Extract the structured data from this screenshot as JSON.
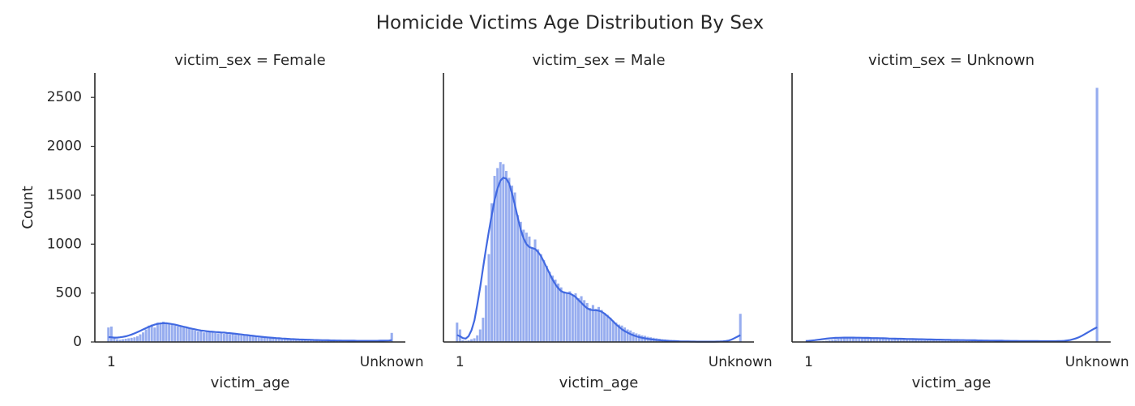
{
  "title": "Homicide Victims Age Distribution By Sex",
  "chart_data": [
    {
      "type": "bar",
      "title": "victim_sex = Female",
      "xlabel": "victim_age",
      "ylabel": "Count",
      "color": "#4169e1",
      "ylim": [
        0,
        2750
      ],
      "yticks": [
        0,
        500,
        1000,
        1500,
        2000,
        2500
      ],
      "categories": [
        null,
        "1",
        null,
        null,
        null,
        null,
        null,
        null,
        null,
        null,
        null,
        null,
        null,
        null,
        null,
        null,
        null,
        null,
        null,
        null,
        null,
        null,
        null,
        null,
        null,
        null,
        null,
        null,
        null,
        null,
        null,
        null,
        null,
        null,
        null,
        null,
        null,
        null,
        null,
        null,
        null,
        null,
        null,
        null,
        null,
        null,
        null,
        null,
        null,
        null,
        null,
        null,
        null,
        null,
        null,
        null,
        null,
        null,
        null,
        null,
        null,
        null,
        null,
        null,
        null,
        null,
        null,
        null,
        null,
        null,
        null,
        null,
        null,
        null,
        null,
        null,
        null,
        null,
        null,
        null,
        null,
        null,
        null,
        null,
        null,
        null,
        null,
        null,
        null,
        null,
        null,
        null,
        null,
        null,
        null,
        null,
        null,
        null,
        "Unknown"
      ],
      "values": [
        150,
        160,
        40,
        30,
        25,
        30,
        35,
        40,
        45,
        50,
        60,
        80,
        100,
        130,
        170,
        180,
        150,
        200,
        190,
        210,
        200,
        190,
        180,
        170,
        160,
        165,
        150,
        145,
        140,
        130,
        120,
        110,
        115,
        100,
        105,
        110,
        100,
        95,
        90,
        100,
        85,
        90,
        80,
        85,
        75,
        80,
        70,
        75,
        65,
        60,
        60,
        55,
        50,
        50,
        45,
        45,
        40,
        40,
        35,
        35,
        30,
        30,
        28,
        26,
        25,
        24,
        22,
        20,
        20,
        18,
        18,
        16,
        15,
        15,
        14,
        13,
        12,
        12,
        11,
        10,
        10,
        9,
        8,
        8,
        7,
        6,
        6,
        5,
        5,
        4,
        4,
        3,
        3,
        2,
        2,
        2,
        1,
        1,
        95
      ],
      "kde": [
        50,
        48,
        45,
        45,
        48,
        52,
        58,
        66,
        76,
        88,
        100,
        114,
        128,
        142,
        155,
        167,
        177,
        185,
        190,
        192,
        191,
        188,
        183,
        177,
        170,
        163,
        156,
        149,
        142,
        135,
        129,
        123,
        118,
        114,
        110,
        107,
        104,
        102,
        100,
        98,
        96,
        93,
        90,
        87,
        84,
        80,
        77,
        73,
        70,
        66,
        63,
        59,
        56,
        53,
        50,
        47,
        45,
        42,
        40,
        38,
        36,
        34,
        32,
        30,
        29,
        27,
        26,
        25,
        24,
        23,
        22,
        21,
        20,
        19,
        18,
        18,
        17,
        16,
        16,
        15,
        15,
        14,
        14,
        13,
        13,
        13,
        12,
        12,
        12,
        12,
        12,
        12,
        12,
        12,
        13,
        13,
        14,
        15,
        18
      ]
    },
    {
      "type": "bar",
      "title": "victim_sex = Male",
      "xlabel": "victim_age",
      "color": "#4169e1",
      "ylim": [
        0,
        2750
      ],
      "categories": [
        null,
        "1",
        null,
        null,
        null,
        null,
        null,
        null,
        null,
        null,
        null,
        null,
        null,
        null,
        null,
        null,
        null,
        null,
        null,
        null,
        null,
        null,
        null,
        null,
        null,
        null,
        null,
        null,
        null,
        null,
        null,
        null,
        null,
        null,
        null,
        null,
        null,
        null,
        null,
        null,
        null,
        null,
        null,
        null,
        null,
        null,
        null,
        null,
        null,
        null,
        null,
        null,
        null,
        null,
        null,
        null,
        null,
        null,
        null,
        null,
        null,
        null,
        null,
        null,
        null,
        null,
        null,
        null,
        null,
        null,
        null,
        null,
        null,
        null,
        null,
        null,
        null,
        null,
        null,
        null,
        null,
        null,
        null,
        null,
        null,
        null,
        null,
        null,
        null,
        null,
        null,
        null,
        null,
        null,
        null,
        null,
        null,
        null,
        "Unknown"
      ],
      "values": [
        200,
        130,
        20,
        15,
        20,
        30,
        40,
        70,
        130,
        250,
        580,
        900,
        1420,
        1700,
        1780,
        1840,
        1820,
        1750,
        1680,
        1600,
        1530,
        1300,
        1230,
        1150,
        1120,
        1080,
        960,
        1050,
        950,
        900,
        840,
        780,
        720,
        680,
        640,
        600,
        560,
        520,
        500,
        520,
        480,
        500,
        450,
        470,
        430,
        400,
        350,
        380,
        340,
        360,
        330,
        300,
        280,
        250,
        220,
        200,
        180,
        170,
        150,
        130,
        120,
        100,
        90,
        80,
        70,
        65,
        55,
        50,
        45,
        40,
        35,
        30,
        28,
        25,
        22,
        20,
        18,
        16,
        14,
        12,
        10,
        9,
        8,
        7,
        6,
        5,
        5,
        4,
        3,
        3,
        2,
        2,
        2,
        1,
        1,
        1,
        1,
        1,
        290
      ],
      "kde": [
        70,
        60,
        40,
        35,
        60,
        120,
        220,
        380,
        560,
        760,
        950,
        1130,
        1300,
        1450,
        1570,
        1650,
        1680,
        1670,
        1620,
        1520,
        1400,
        1270,
        1150,
        1060,
        1000,
        970,
        960,
        950,
        920,
        880,
        820,
        760,
        700,
        640,
        590,
        550,
        520,
        505,
        500,
        495,
        480,
        460,
        430,
        400,
        370,
        345,
        330,
        325,
        325,
        320,
        310,
        290,
        265,
        240,
        210,
        180,
        155,
        130,
        110,
        95,
        80,
        68,
        58,
        50,
        43,
        37,
        32,
        28,
        24,
        21,
        18,
        16,
        14,
        12,
        10,
        9,
        8,
        7,
        6,
        5,
        5,
        4,
        4,
        3,
        3,
        3,
        3,
        3,
        3,
        3,
        4,
        5,
        7,
        10,
        15,
        25,
        40,
        55,
        70
      ]
    },
    {
      "type": "bar",
      "title": "victim_sex = Unknown",
      "xlabel": "victim_age",
      "color": "#4169e1",
      "ylim": [
        0,
        2750
      ],
      "categories": [
        null,
        "1",
        null,
        null,
        null,
        null,
        null,
        null,
        null,
        null,
        null,
        null,
        null,
        null,
        null,
        null,
        null,
        null,
        null,
        null,
        null,
        null,
        null,
        null,
        null,
        null,
        null,
        null,
        null,
        null,
        null,
        null,
        null,
        null,
        null,
        null,
        null,
        null,
        null,
        null,
        null,
        null,
        null,
        null,
        null,
        null,
        null,
        null,
        null,
        null,
        null,
        null,
        null,
        null,
        null,
        null,
        null,
        null,
        null,
        null,
        null,
        null,
        null,
        null,
        null,
        null,
        null,
        null,
        null,
        null,
        null,
        null,
        null,
        null,
        null,
        null,
        null,
        null,
        null,
        null,
        null,
        null,
        null,
        null,
        null,
        null,
        null,
        null,
        null,
        null,
        null,
        null,
        null,
        null,
        null,
        null,
        null,
        null,
        "Unknown"
      ],
      "values": [
        5,
        5,
        3,
        4,
        5,
        8,
        10,
        15,
        20,
        25,
        30,
        35,
        40,
        45,
        40,
        45,
        50,
        45,
        40,
        45,
        40,
        42,
        38,
        36,
        35,
        34,
        32,
        30,
        30,
        28,
        27,
        26,
        25,
        25,
        24,
        23,
        22,
        22,
        21,
        20,
        20,
        19,
        18,
        18,
        17,
        16,
        15,
        15,
        14,
        14,
        13,
        13,
        12,
        12,
        11,
        11,
        10,
        10,
        9,
        9,
        9,
        8,
        8,
        7,
        7,
        7,
        6,
        6,
        6,
        5,
        5,
        5,
        5,
        4,
        4,
        4,
        4,
        3,
        3,
        3,
        3,
        3,
        2,
        2,
        2,
        2,
        2,
        1,
        1,
        1,
        1,
        1,
        1,
        1,
        0,
        0,
        0,
        0,
        2600
      ],
      "kde": [
        10,
        12,
        15,
        18,
        22,
        26,
        30,
        34,
        37,
        40,
        42,
        43,
        44,
        45,
        45,
        45,
        45,
        44,
        44,
        43,
        42,
        42,
        41,
        40,
        40,
        39,
        38,
        37,
        36,
        35,
        34,
        33,
        33,
        32,
        31,
        31,
        30,
        29,
        28,
        28,
        27,
        26,
        26,
        25,
        24,
        24,
        23,
        22,
        22,
        21,
        20,
        20,
        19,
        19,
        18,
        18,
        17,
        17,
        16,
        16,
        15,
        15,
        14,
        14,
        13,
        13,
        13,
        12,
        12,
        11,
        11,
        11,
        10,
        10,
        10,
        9,
        9,
        9,
        9,
        8,
        8,
        8,
        8,
        8,
        8,
        9,
        10,
        12,
        16,
        20,
        28,
        38,
        50,
        65,
        82,
        100,
        118,
        135,
        150
      ]
    }
  ]
}
